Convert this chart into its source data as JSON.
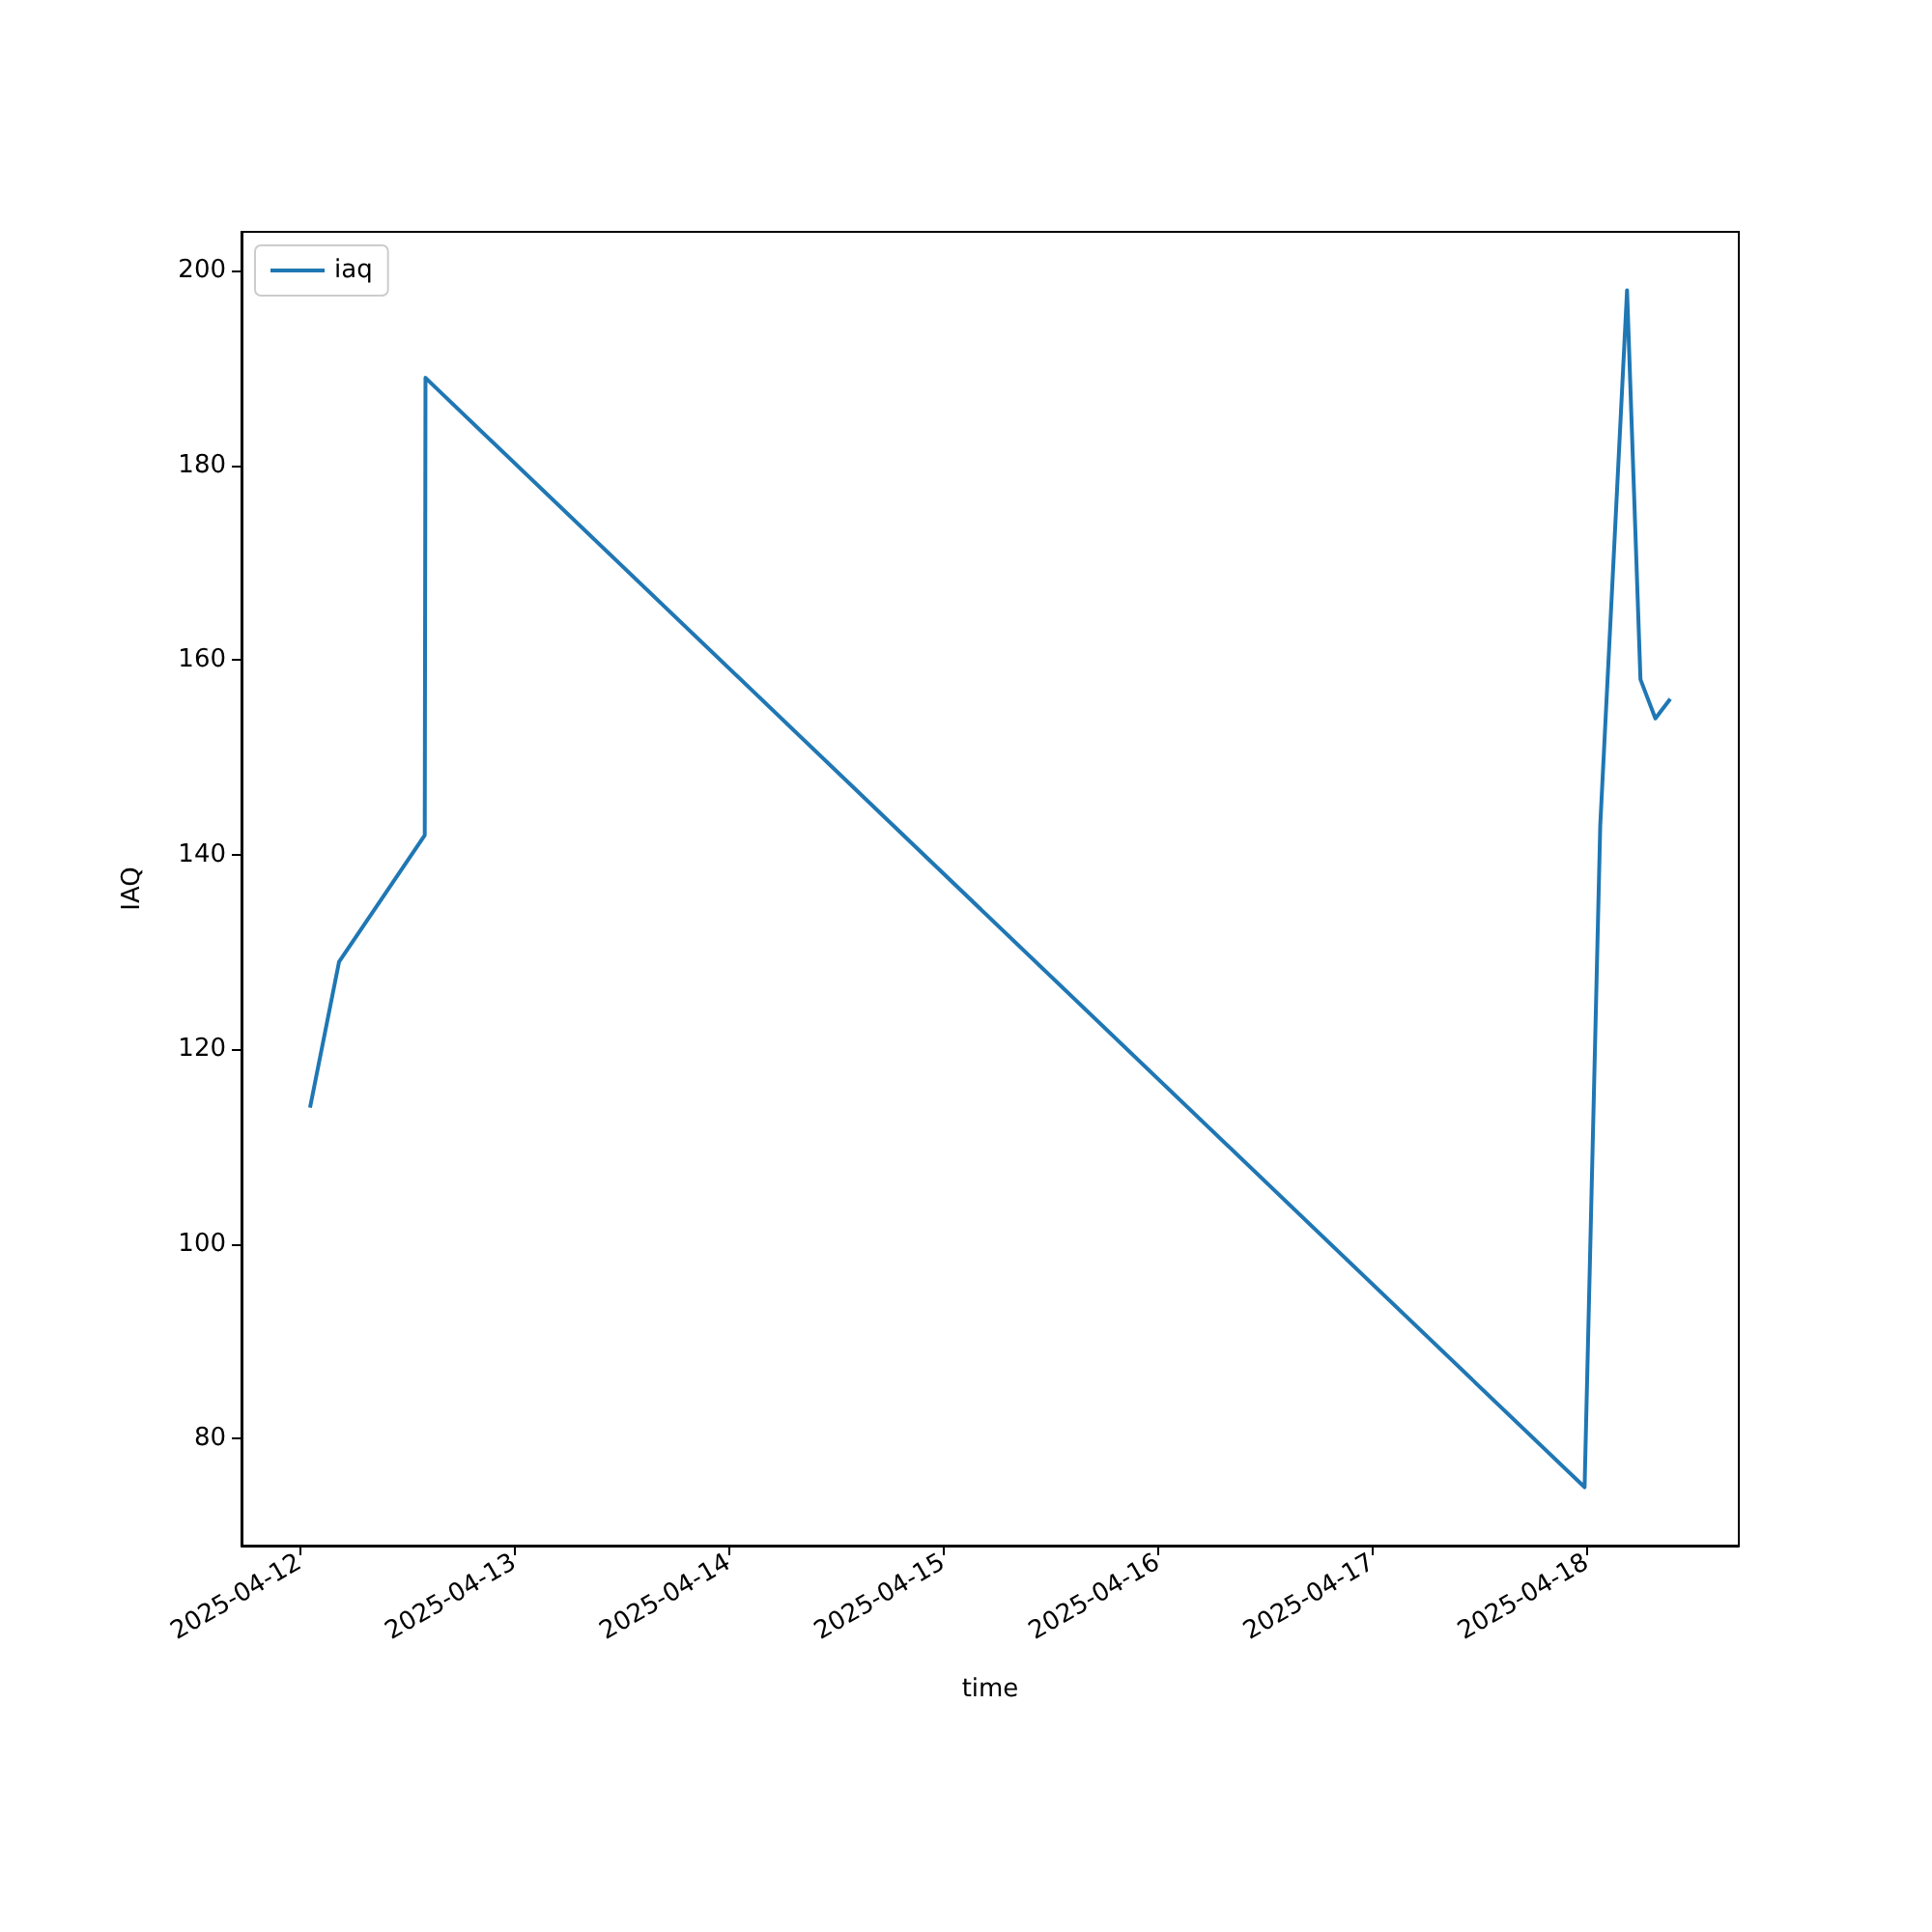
{
  "chart_data": {
    "type": "line",
    "xlabel": "time",
    "ylabel": "IAQ",
    "x": [
      "2025-04-12T01:10",
      "2025-04-12T04:25",
      "2025-04-12T14:00",
      "2025-04-12T14:05",
      "2025-04-17T23:45",
      "2025-04-18T01:30",
      "2025-04-18T04:30",
      "2025-04-18T06:00",
      "2025-04-18T07:40",
      "2025-04-18T09:20"
    ],
    "series": [
      {
        "name": "iaq",
        "color": "#1f77b4",
        "values": [
          114,
          129,
          142,
          189,
          75,
          143,
          198,
          158,
          154,
          156
        ]
      }
    ],
    "xlim": [
      "2025-04-11T17:30",
      "2025-04-18T17:00"
    ],
    "ylim": [
      69,
      204
    ],
    "xticks": [
      "2025-04-12",
      "2025-04-13",
      "2025-04-14",
      "2025-04-15",
      "2025-04-16",
      "2025-04-17",
      "2025-04-18"
    ],
    "yticks": [
      80,
      100,
      120,
      140,
      160,
      180,
      200
    ],
    "legend": "top left"
  }
}
